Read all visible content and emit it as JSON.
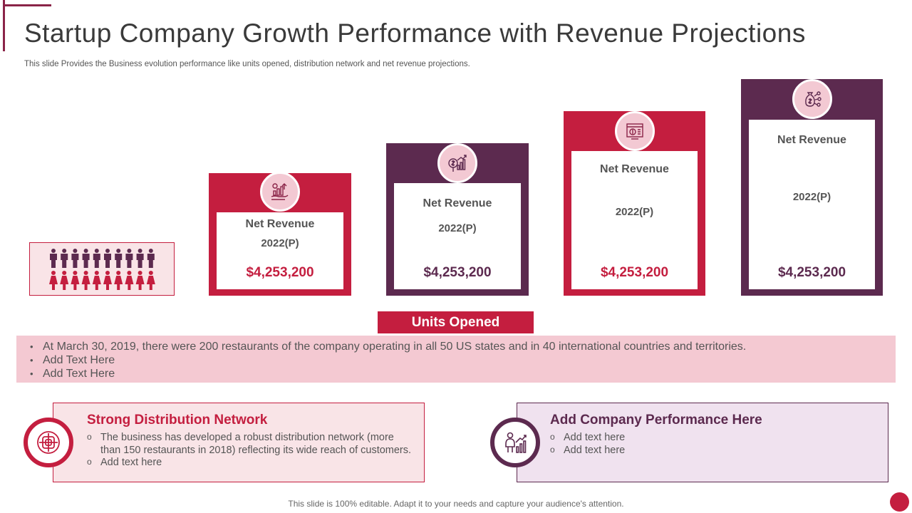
{
  "title": "Startup Company Growth Performance with Revenue Projections",
  "subtitle": "This slide Provides the Business evolution performance like units opened, distribution network and net revenue projections.",
  "cards": [
    {
      "label": "Net Revenue",
      "year": "2022(P)",
      "value": "$4,253,200",
      "icon": "growth-hand-icon"
    },
    {
      "label": "Net Revenue",
      "year": "2022(P)",
      "value": "$4,253,200",
      "icon": "dollar-chart-icon"
    },
    {
      "label": "Net Revenue",
      "year": "2022(P)",
      "value": "$4,253,200",
      "icon": "finance-screen-icon"
    },
    {
      "label": "Net Revenue",
      "year": "2022(P)",
      "value": "$4,253,200",
      "icon": "money-bag-network-icon"
    }
  ],
  "units": {
    "header": "Units Opened",
    "bullets": [
      "At March 30, 2019, there were 200 restaurants  of the company operating in all 50 US states and in 40 international countries and territories.",
      "Add Text Here",
      "Add Text Here"
    ]
  },
  "distribution": {
    "title": "Strong Distribution Network",
    "bullets": [
      "The business has developed a robust distribution network (more than 150 restaurants in 2018) reflecting its wide reach of customers.",
      "Add text here"
    ],
    "icon": "knot-network-icon"
  },
  "performance": {
    "title": "Add Company Performance Here",
    "bullets": [
      "Add text here",
      "Add text here"
    ],
    "icon": "person-growth-chart-icon"
  },
  "people_icons": {
    "icon": "people-group-icon",
    "male_color": "#5c2a4f",
    "female_color": "#c41e3f"
  },
  "footer": "This slide is 100% editable. Adapt it to your needs and capture your audience's attention.",
  "colors": {
    "crimson": "#c41e3f",
    "plum": "#5c2a4f",
    "light_pink": "#f4c9d2",
    "light_lavender": "#f0e2ef"
  }
}
